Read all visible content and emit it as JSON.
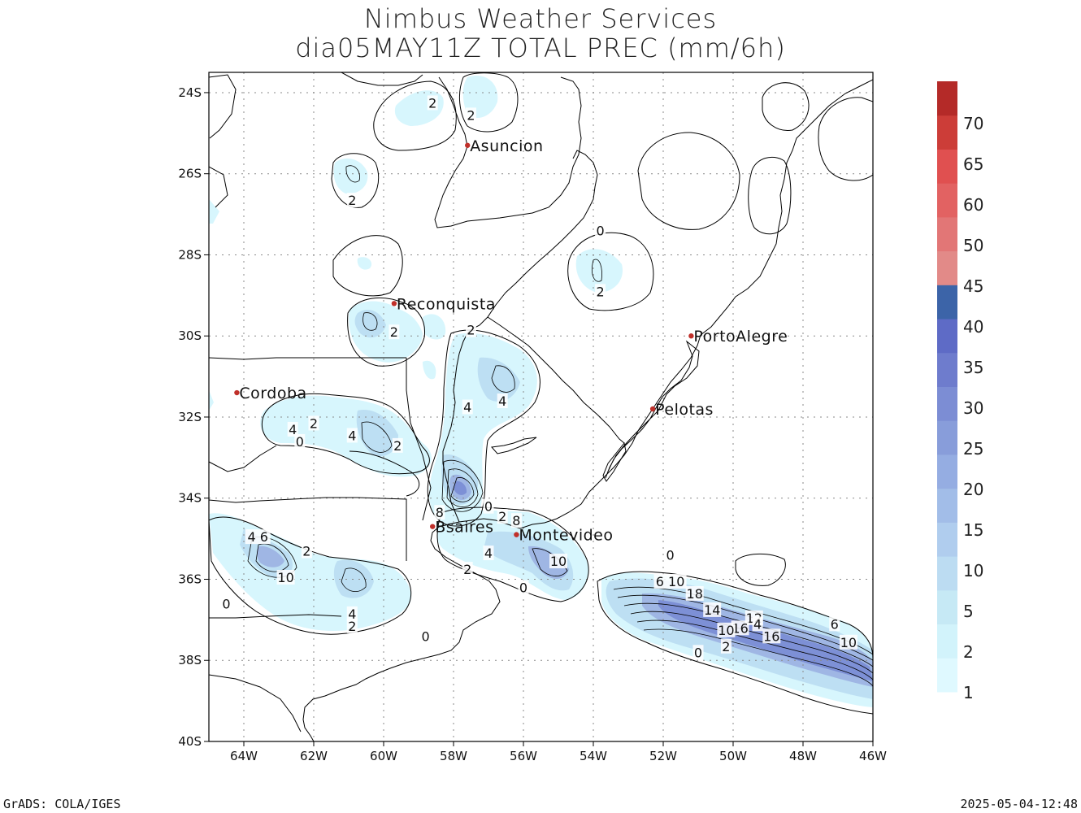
{
  "title": {
    "line1": "Nimbus Weather Services",
    "line2": "dia05MAY11Z TOTAL PREC (mm/6h)"
  },
  "map": {
    "lon_range": [
      -65,
      -46
    ],
    "lat_range": [
      -40,
      -23.5
    ],
    "lon_ticks": [
      "64W",
      "62W",
      "60W",
      "58W",
      "56W",
      "54W",
      "52W",
      "50W",
      "48W",
      "46W"
    ],
    "lon_tick_values": [
      -64,
      -62,
      -60,
      -58,
      -56,
      -54,
      -52,
      -50,
      -48,
      -46
    ],
    "lat_ticks": [
      "24S",
      "26S",
      "28S",
      "30S",
      "32S",
      "34S",
      "36S",
      "38S",
      "40S"
    ],
    "lat_tick_values": [
      -24,
      -26,
      -28,
      -30,
      -32,
      -34,
      -36,
      -38,
      -40
    ],
    "cities": [
      {
        "name": "Asuncion",
        "lon": -57.6,
        "lat": -25.3
      },
      {
        "name": "Reconquista",
        "lon": -59.7,
        "lat": -29.2
      },
      {
        "name": "PortoAlegre",
        "lon": -51.2,
        "lat": -30.0
      },
      {
        "name": "Cordoba",
        "lon": -64.2,
        "lat": -31.4
      },
      {
        "name": "Pelotas",
        "lon": -52.3,
        "lat": -31.8
      },
      {
        "name": "Bsaires",
        "lon": -58.6,
        "lat": -34.7
      },
      {
        "name": "Montevideo",
        "lon": -56.2,
        "lat": -34.9
      }
    ],
    "city_marker_color": "#c0302a",
    "contour_labels": [
      {
        "t": "2",
        "lon": -58.6,
        "lat": -24.25
      },
      {
        "t": "2",
        "lon": -57.5,
        "lat": -24.55
      },
      {
        "t": "2",
        "lon": -60.9,
        "lat": -26.65
      },
      {
        "t": "0",
        "lon": -53.8,
        "lat": -27.4
      },
      {
        "t": "2",
        "lon": -53.8,
        "lat": -28.9
      },
      {
        "t": "2",
        "lon": -59.7,
        "lat": -29.9
      },
      {
        "t": "2",
        "lon": -57.5,
        "lat": -29.85
      },
      {
        "t": "4",
        "lon": -57.6,
        "lat": -31.75
      },
      {
        "t": "4",
        "lon": -56.6,
        "lat": -31.6
      },
      {
        "t": "4",
        "lon": -62.6,
        "lat": -32.3
      },
      {
        "t": "2",
        "lon": -62.0,
        "lat": -32.15
      },
      {
        "t": "4",
        "lon": -60.9,
        "lat": -32.45
      },
      {
        "t": "0",
        "lon": -62.4,
        "lat": -32.6
      },
      {
        "t": "2",
        "lon": -59.6,
        "lat": -32.7
      },
      {
        "t": "8",
        "lon": -58.4,
        "lat": -34.35
      },
      {
        "t": "0",
        "lon": -57.0,
        "lat": -34.2
      },
      {
        "t": "2",
        "lon": -56.6,
        "lat": -34.45
      },
      {
        "t": "8",
        "lon": -56.2,
        "lat": -34.55
      },
      {
        "t": "4 6",
        "lon": -63.6,
        "lat": -34.95
      },
      {
        "t": "2",
        "lon": -62.2,
        "lat": -35.3
      },
      {
        "t": "4",
        "lon": -57.0,
        "lat": -35.35
      },
      {
        "t": "10",
        "lon": -55.0,
        "lat": -35.55
      },
      {
        "t": "2",
        "lon": -57.6,
        "lat": -35.75
      },
      {
        "t": "10",
        "lon": -62.8,
        "lat": -35.95
      },
      {
        "t": "0",
        "lon": -51.8,
        "lat": -35.4
      },
      {
        "t": "6 10",
        "lon": -51.8,
        "lat": -36.05
      },
      {
        "t": "18",
        "lon": -51.1,
        "lat": -36.35
      },
      {
        "t": "0",
        "lon": -56.0,
        "lat": -36.2
      },
      {
        "t": "0",
        "lon": -64.5,
        "lat": -36.6
      },
      {
        "t": "4",
        "lon": -60.9,
        "lat": -36.85
      },
      {
        "t": "14",
        "lon": -50.6,
        "lat": -36.75
      },
      {
        "t": "12",
        "lon": -49.4,
        "lat": -36.95
      },
      {
        "t": "16",
        "lon": -49.8,
        "lat": -37.2
      },
      {
        "t": "10",
        "lon": -50.2,
        "lat": -37.25
      },
      {
        "t": "4",
        "lon": -49.3,
        "lat": -37.1
      },
      {
        "t": "16",
        "lon": -48.9,
        "lat": -37.4
      },
      {
        "t": "6",
        "lon": -47.1,
        "lat": -37.1
      },
      {
        "t": "2",
        "lon": -60.9,
        "lat": -37.15
      },
      {
        "t": "0",
        "lon": -58.8,
        "lat": -37.4
      },
      {
        "t": "2",
        "lon": -50.2,
        "lat": -37.65
      },
      {
        "t": "10",
        "lon": -46.7,
        "lat": -37.55
      },
      {
        "t": "0",
        "lon": -51.0,
        "lat": -37.8
      }
    ]
  },
  "colorbar": {
    "levels": [
      "1",
      "2",
      "5",
      "10",
      "15",
      "20",
      "25",
      "30",
      "35",
      "40",
      "45",
      "50",
      "55",
      "60",
      "65",
      "70"
    ],
    "labels": [
      "1",
      "2",
      "5",
      "10",
      "15",
      "20",
      "25",
      "30",
      "35",
      "40",
      "45",
      "50",
      "60",
      "65",
      "70"
    ],
    "colors": [
      "#dff9ff",
      "#d2f3fb",
      "#c6e9f5",
      "#bcdcf2",
      "#b0cdee",
      "#a2bde8",
      "#95ade2",
      "#889dda",
      "#7c8dd4",
      "#6e7ccd",
      "#5e6bc6",
      "#3c64a8",
      "#e28a88",
      "#e27676",
      "#e26262",
      "#e05050",
      "#cc3d38",
      "#b42a28"
    ]
  },
  "footer": {
    "left": "GrADS: COLA/IGES",
    "right": "2025-05-04-12:48"
  }
}
